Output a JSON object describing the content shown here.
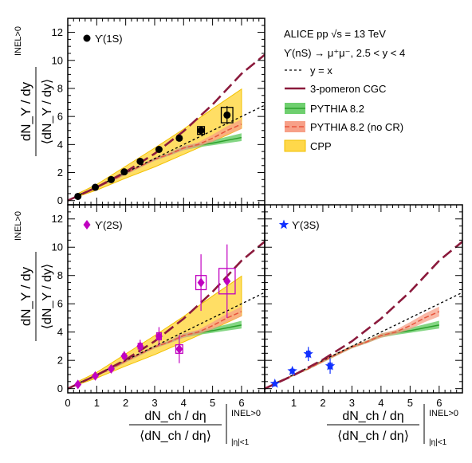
{
  "chart_data": {
    "type": "line",
    "layout": "three panels (top-left, bottom-left, bottom-right) sharing x axis",
    "x_axis": {
      "range": [
        0,
        6.8
      ],
      "ticks": [
        0,
        1,
        2,
        3,
        4,
        5,
        6
      ],
      "tick_labels": [
        "0",
        "1",
        "2",
        "3",
        "4",
        "5",
        "6"
      ],
      "label_main": "dN_ch / dη",
      "label_denom": "⟨dN_ch / dη⟩",
      "label_sup": "INEL>0",
      "label_sub": "|η|<1"
    },
    "y_axis": {
      "range": [
        -0.3,
        13
      ],
      "ticks": [
        0,
        2,
        4,
        6,
        8,
        10,
        12
      ],
      "tick_labels": [
        "0",
        "2",
        "4",
        "6",
        "8",
        "10",
        "12"
      ],
      "label_main": "dN_Υ / dy",
      "label_denom": "⟨dN_Υ / dy⟩",
      "label_sup": "INEL>0"
    },
    "legend": {
      "header": "ALICE pp √s = 13 TeV",
      "subheader": "ϒ(nS) → μ⁺μ⁻, 2.5 < y < 4",
      "items": [
        {
          "key": "yx",
          "label": "y = x"
        },
        {
          "key": "cgc",
          "label": "3-pomeron CGC"
        },
        {
          "key": "pythia",
          "label": "PYTHIA 8.2"
        },
        {
          "key": "pythia_nocr",
          "label": "PYTHIA 8.2 (no CR)"
        },
        {
          "key": "cpp",
          "label": "CPP"
        }
      ]
    },
    "colors": {
      "cgc": "#8b1a3c",
      "pythia": "#2ca02c",
      "pythia_band": "#6fcf6f",
      "pythia_nocr": "#e8543c",
      "pythia_nocr_band": "#f7a088",
      "cpp_band": "#ffd84a",
      "cpp_edge": "#f2c100",
      "ups1s": "#000000",
      "ups2s": "#c000c0",
      "ups3s": "#1030ff"
    },
    "models": {
      "yx": {
        "x": [
          0,
          6.8
        ],
        "y": [
          0,
          6.8
        ]
      },
      "cgc": {
        "x": [
          0,
          1,
          2,
          3,
          4,
          5,
          6,
          6.8
        ],
        "y": [
          0,
          0.95,
          2.05,
          3.35,
          4.95,
          6.85,
          9.05,
          10.4
        ]
      },
      "pythia": {
        "x": [
          0.3,
          1,
          1.5,
          2,
          2.5,
          3,
          3.5,
          4,
          4.5,
          5,
          5.5,
          6
        ],
        "y": [
          0.35,
          0.95,
          1.4,
          1.95,
          2.45,
          2.95,
          3.3,
          3.75,
          3.95,
          4.1,
          4.3,
          4.5
        ],
        "lo": [
          0.3,
          0.9,
          1.35,
          1.85,
          2.35,
          2.85,
          3.2,
          3.6,
          3.8,
          3.95,
          4.1,
          4.25
        ],
        "hi": [
          0.4,
          1.0,
          1.45,
          2.05,
          2.55,
          3.05,
          3.4,
          3.9,
          4.1,
          4.3,
          4.55,
          4.8
        ]
      },
      "pythia_nocr": {
        "x": [
          0.3,
          1,
          1.5,
          2,
          2.5,
          3,
          3.5,
          4,
          4.5,
          5,
          5.5,
          6
        ],
        "y": [
          0.35,
          0.95,
          1.4,
          1.95,
          2.45,
          2.95,
          3.3,
          3.75,
          4.0,
          4.45,
          5.0,
          5.45
        ],
        "lo": [
          0.3,
          0.9,
          1.35,
          1.85,
          2.35,
          2.85,
          3.2,
          3.6,
          3.85,
          4.2,
          4.7,
          5.1
        ],
        "hi": [
          0.4,
          1.0,
          1.45,
          2.05,
          2.55,
          3.05,
          3.4,
          3.9,
          4.15,
          4.7,
          5.3,
          5.8
        ]
      },
      "cpp": {
        "x": [
          0.3,
          1,
          2,
          3,
          4,
          5,
          6
        ],
        "lo": [
          0.25,
          0.75,
          1.6,
          2.4,
          3.3,
          4.2,
          5.15
        ],
        "hi": [
          0.45,
          1.15,
          2.45,
          3.75,
          5.1,
          6.55,
          7.95
        ]
      }
    },
    "panels": [
      {
        "id": "1S",
        "label": "ϒ(1S)",
        "marker": "circle",
        "color_key": "ups1s",
        "points": [
          {
            "x": 0.35,
            "y": 0.3,
            "ex": 0.06,
            "ey": 0.05,
            "stat": 0.04
          },
          {
            "x": 0.95,
            "y": 0.95,
            "ex": 0.06,
            "ey": 0.05,
            "stat": 0.05
          },
          {
            "x": 1.5,
            "y": 1.5,
            "ex": 0.06,
            "ey": 0.06,
            "stat": 0.06
          },
          {
            "x": 1.95,
            "y": 2.05,
            "ex": 0.06,
            "ey": 0.07,
            "stat": 0.07
          },
          {
            "x": 2.5,
            "y": 2.8,
            "ex": 0.06,
            "ey": 0.09,
            "stat": 0.1
          },
          {
            "x": 3.15,
            "y": 3.65,
            "ex": 0.07,
            "ey": 0.1,
            "stat": 0.12
          },
          {
            "x": 3.85,
            "y": 4.45,
            "ex": 0.08,
            "ey": 0.14,
            "stat": 0.18
          },
          {
            "x": 4.6,
            "y": 5.0,
            "ex": 0.12,
            "ey": 0.28,
            "stat": 0.3
          },
          {
            "x": 5.5,
            "y": 6.1,
            "ex": 0.2,
            "ey": 0.55,
            "stat": 0.65
          }
        ],
        "curves": [
          "cpp",
          "pythia",
          "pythia_nocr",
          "yx",
          "cgc"
        ]
      },
      {
        "id": "2S",
        "label": "ϒ(2S)",
        "marker": "diamond",
        "color_key": "ups2s",
        "points": [
          {
            "x": 0.35,
            "y": 0.3,
            "ex": 0.06,
            "ey": 0.05,
            "stat": 0.15
          },
          {
            "x": 0.95,
            "y": 0.9,
            "ex": 0.06,
            "ey": 0.08,
            "stat": 0.25
          },
          {
            "x": 1.5,
            "y": 1.4,
            "ex": 0.06,
            "ey": 0.1,
            "stat": 0.3
          },
          {
            "x": 1.95,
            "y": 2.3,
            "ex": 0.06,
            "ey": 0.15,
            "stat": 0.35
          },
          {
            "x": 2.5,
            "y": 3.0,
            "ex": 0.07,
            "ey": 0.2,
            "stat": 0.45
          },
          {
            "x": 3.15,
            "y": 3.7,
            "ex": 0.08,
            "ey": 0.25,
            "stat": 0.65
          },
          {
            "x": 3.85,
            "y": 2.8,
            "ex": 0.12,
            "ey": 0.3,
            "stat": 1.0
          },
          {
            "x": 4.6,
            "y": 7.5,
            "ex": 0.18,
            "ey": 0.5,
            "stat": 2.0
          },
          {
            "x": 5.5,
            "y": 7.6,
            "ex": 0.28,
            "ey": 0.9,
            "stat": 2.6
          }
        ],
        "curves": [
          "cpp",
          "pythia",
          "pythia_nocr",
          "yx",
          "cgc"
        ]
      },
      {
        "id": "3S",
        "label": "ϒ(3S)",
        "marker": "star",
        "color_key": "ups3s",
        "points": [
          {
            "x": 0.35,
            "y": 0.35,
            "ex": 0.06,
            "ey": 0.08,
            "stat": 0.2
          },
          {
            "x": 0.95,
            "y": 1.25,
            "ex": 0.06,
            "ey": 0.12,
            "stat": 0.3
          },
          {
            "x": 1.5,
            "y": 2.45,
            "ex": 0.06,
            "ey": 0.2,
            "stat": 0.5
          },
          {
            "x": 2.25,
            "y": 1.6,
            "ex": 0.07,
            "ey": 0.2,
            "stat": 0.55
          }
        ],
        "curves": [
          "pythia",
          "pythia_nocr",
          "yx",
          "cgc"
        ]
      }
    ]
  }
}
